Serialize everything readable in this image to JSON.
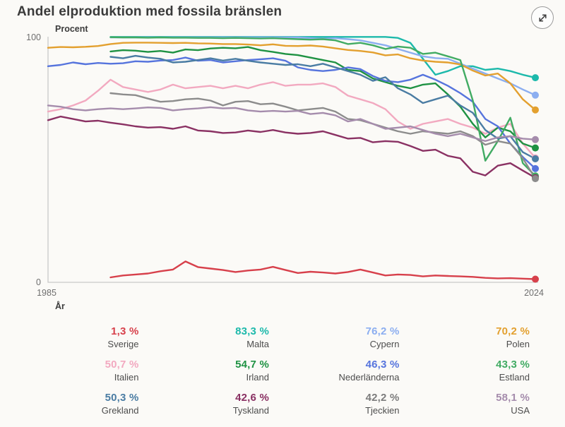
{
  "header": {
    "title": "Andel elproduktion med fossila bränslen",
    "expand_button": {
      "icon": "expand-diagonal-icon"
    }
  },
  "chart": {
    "ylabel": "Procent",
    "xlabel": "År",
    "y_max_label": "100",
    "y_min_label": "0",
    "x_start_label": "1985",
    "x_end_label": "2024",
    "axis_color": "#c9c9c9",
    "label_color": "#6e6e6e",
    "strong_label_color": "#3c3c3c"
  },
  "chart_data": {
    "type": "line",
    "title": "Andel elproduktion med fossila bränslen",
    "xlabel": "År",
    "ylabel": "Procent",
    "unit": "%",
    "x_range": [
      1985,
      2024
    ],
    "ylim": [
      0,
      100
    ],
    "grid": false,
    "legend_position": "bottom",
    "series": [
      {
        "name": "Sverige",
        "color": "#d7404b",
        "end_label": "1,3 %",
        "start_year": 1990,
        "values": [
          2,
          2.8,
          3.2,
          3.6,
          4.5,
          5.2,
          8.5,
          6.2,
          5.6,
          5,
          4.2,
          4.8,
          5.2,
          6.3,
          5,
          3.8,
          4.3,
          4,
          3.6,
          4.2,
          5.2,
          4,
          2.8,
          3.2,
          3,
          2.4,
          2.8,
          2.6,
          2.4,
          2.2,
          1.8,
          1.6,
          1.7,
          1.5,
          1.3
        ]
      },
      {
        "name": "Malta",
        "color": "#1db9ab",
        "end_label": "83,3 %",
        "start_year": 1990,
        "values": [
          99.9,
          99.9,
          99.9,
          99.9,
          99.9,
          99.9,
          99.9,
          99.9,
          99.9,
          99.9,
          99.9,
          99.9,
          99.9,
          99.9,
          99.9,
          99.9,
          99.9,
          99.9,
          99.9,
          99.9,
          99.9,
          99.9,
          99.9,
          99.5,
          97.5,
          91,
          84.5,
          86,
          88,
          88,
          86.5,
          87,
          86,
          84.5,
          83.3
        ]
      },
      {
        "name": "Cypern",
        "color": "#8caef0",
        "end_label": "76,2 %",
        "start_year": 1990,
        "values": [
          99.7,
          99.7,
          99.7,
          99.7,
          99.7,
          99.7,
          99.7,
          99.7,
          99.7,
          99.7,
          99.7,
          99.7,
          99.7,
          99.7,
          99.7,
          99.7,
          99.4,
          99.2,
          99.4,
          99,
          98.5,
          97.5,
          96.5,
          95,
          93.5,
          92,
          91.3,
          91,
          89,
          87,
          85,
          83,
          81,
          78.5,
          76.2
        ]
      },
      {
        "name": "Polen",
        "color": "#e3a02f",
        "end_label": "70,2 %",
        "start_year": 1985,
        "values": [
          95.5,
          95.8,
          95.7,
          95.9,
          96.2,
          97,
          97.5,
          97.6,
          97.6,
          97.5,
          97.4,
          97.5,
          97.3,
          97.2,
          97,
          97,
          96.8,
          96.5,
          96.9,
          96.3,
          96.2,
          96.4,
          96,
          95.3,
          94.6,
          94.2,
          93.6,
          92.4,
          92.8,
          91.2,
          90.3,
          89.8,
          89.5,
          88.7,
          86.2,
          84.2,
          85,
          81,
          74.5,
          70.2
        ]
      },
      {
        "name": "Italien",
        "color": "#f2a9c0",
        "end_label": "50,7 %",
        "start_year": 1985,
        "values": [
          69.5,
          70.5,
          72,
          74,
          78,
          82.5,
          79.5,
          78.5,
          77.5,
          78.5,
          80.5,
          79,
          79.5,
          80,
          79,
          80,
          79,
          80.5,
          81.5,
          80,
          80.5,
          80.5,
          81,
          79.5,
          76,
          74.5,
          73,
          70.5,
          65.5,
          62.5,
          64.5,
          65.5,
          66.5,
          64.5,
          63,
          60.5,
          63,
          64.5,
          56.5,
          50.7
        ]
      },
      {
        "name": "Irland",
        "color": "#1f9243",
        "end_label": "54,7 %",
        "start_year": 1990,
        "values": [
          94,
          94.5,
          94.3,
          93.8,
          94.2,
          93.5,
          94.8,
          94.5,
          95.2,
          95.5,
          95.3,
          95.8,
          94.5,
          93.8,
          93,
          92.5,
          91.5,
          90.5,
          89.5,
          86.5,
          86,
          83,
          81.5,
          80,
          79,
          80.5,
          81,
          76.5,
          71.5,
          64.5,
          59,
          63,
          61.5,
          56.5,
          54.7
        ]
      },
      {
        "name": "Nederländerna",
        "color": "#5674dd",
        "end_label": "46,3 %",
        "start_year": 1985,
        "values": [
          88,
          88.5,
          89.5,
          88.8,
          89.3,
          89,
          89.2,
          90,
          89.8,
          90.3,
          90.5,
          91.5,
          90.2,
          90.5,
          89.5,
          90,
          90.5,
          90.8,
          91.2,
          90.2,
          87.5,
          86.5,
          86,
          86.5,
          87.5,
          86.8,
          84,
          82,
          81.5,
          82.5,
          84.5,
          82.5,
          80,
          77,
          73.5,
          66.5,
          63.5,
          56.5,
          51,
          46.3
        ]
      },
      {
        "name": "Estland",
        "color": "#41ab63",
        "end_label": "43,3 %",
        "start_year": 1990,
        "values": [
          99.8,
          99.7,
          99.7,
          99.6,
          99.7,
          99.6,
          99.6,
          99.5,
          99.5,
          99.4,
          99.5,
          99.4,
          99.3,
          99.4,
          99.2,
          99,
          98.8,
          99,
          98.5,
          97,
          97.5,
          96.5,
          95,
          96,
          95.5,
          93,
          93.5,
          92,
          90.5,
          74,
          49.5,
          57.5,
          67,
          48.5,
          43.3
        ]
      },
      {
        "name": "Grekland",
        "color": "#4a7ca3",
        "end_label": "50,3 %",
        "start_year": 1990,
        "values": [
          91.8,
          91.2,
          92.2,
          91.5,
          91,
          89.5,
          89.8,
          90.5,
          91.2,
          90.3,
          91,
          90.2,
          89.5,
          89,
          88.5,
          88.8,
          88,
          89,
          87.5,
          86,
          84.5,
          82,
          83.5,
          79,
          76.5,
          73,
          74.5,
          76,
          72,
          69,
          62,
          58.5,
          59.5,
          53,
          50.3
        ]
      },
      {
        "name": "Tyskland",
        "color": "#8a3163",
        "end_label": "42,6 %",
        "start_year": 1985,
        "values": [
          66,
          67.5,
          66.5,
          65.5,
          65.8,
          65,
          64.3,
          63.5,
          63,
          63.2,
          62.5,
          63.5,
          61.8,
          61.5,
          60.8,
          61,
          61.8,
          61.2,
          62,
          61,
          60.5,
          60.8,
          61.5,
          60,
          58.5,
          58.8,
          57,
          57.5,
          57.2,
          55.5,
          53.5,
          54,
          51.5,
          50.5,
          45,
          43.5,
          47.5,
          48.5,
          45.5,
          42.6
        ]
      },
      {
        "name": "Tjeckien",
        "color": "#8c8c8c",
        "end_label": "42,2 %",
        "start_year": 1990,
        "values": [
          77,
          76.5,
          76.2,
          74.8,
          73.5,
          73.8,
          74.5,
          74.8,
          74,
          72,
          73.5,
          73.8,
          72.5,
          72.8,
          71.5,
          70,
          70.5,
          71,
          69.5,
          66.5,
          66,
          64.5,
          63,
          61.5,
          60.5,
          61.5,
          61,
          60.5,
          61.5,
          59.5,
          56,
          57.5,
          56.5,
          50.5,
          42.2
        ]
      },
      {
        "name": "USA",
        "color": "#a58cac",
        "end_label": "58,1 %",
        "start_year": 1985,
        "values": [
          72,
          71.5,
          70.5,
          70,
          70.5,
          70.8,
          70.5,
          70.8,
          71.2,
          71,
          70,
          70.5,
          70.8,
          71.3,
          70.8,
          71,
          70,
          69.5,
          69.8,
          69.5,
          69.8,
          68.5,
          69,
          68,
          65.5,
          66.5,
          64.5,
          62.5,
          63,
          63.5,
          62,
          60.5,
          59.5,
          60.5,
          59,
          57.5,
          59,
          59.5,
          58.5,
          58.1
        ]
      }
    ]
  },
  "legend": {
    "items": [
      {
        "country": "Sverige",
        "value": "1,3 %",
        "color": "#d7404b"
      },
      {
        "country": "Malta",
        "value": "83,3 %",
        "color": "#1db9ab"
      },
      {
        "country": "Cypern",
        "value": "76,2 %",
        "color": "#8caef0"
      },
      {
        "country": "Polen",
        "value": "70,2 %",
        "color": "#e3a02f"
      },
      {
        "country": "Italien",
        "value": "50,7 %",
        "color": "#f2a9c0"
      },
      {
        "country": "Irland",
        "value": "54,7 %",
        "color": "#1f9243"
      },
      {
        "country": "Nederländerna",
        "value": "46,3 %",
        "color": "#5674dd"
      },
      {
        "country": "Estland",
        "value": "43,3 %",
        "color": "#41ab63"
      },
      {
        "country": "Grekland",
        "value": "50,3 %",
        "color": "#4a7ca3"
      },
      {
        "country": "Tyskland",
        "value": "42,6 %",
        "color": "#8a3163"
      },
      {
        "country": "Tjeckien",
        "value": "42,2 %",
        "color": "#7c7c7c"
      },
      {
        "country": "USA",
        "value": "58,1 %",
        "color": "#a58cac"
      }
    ]
  }
}
